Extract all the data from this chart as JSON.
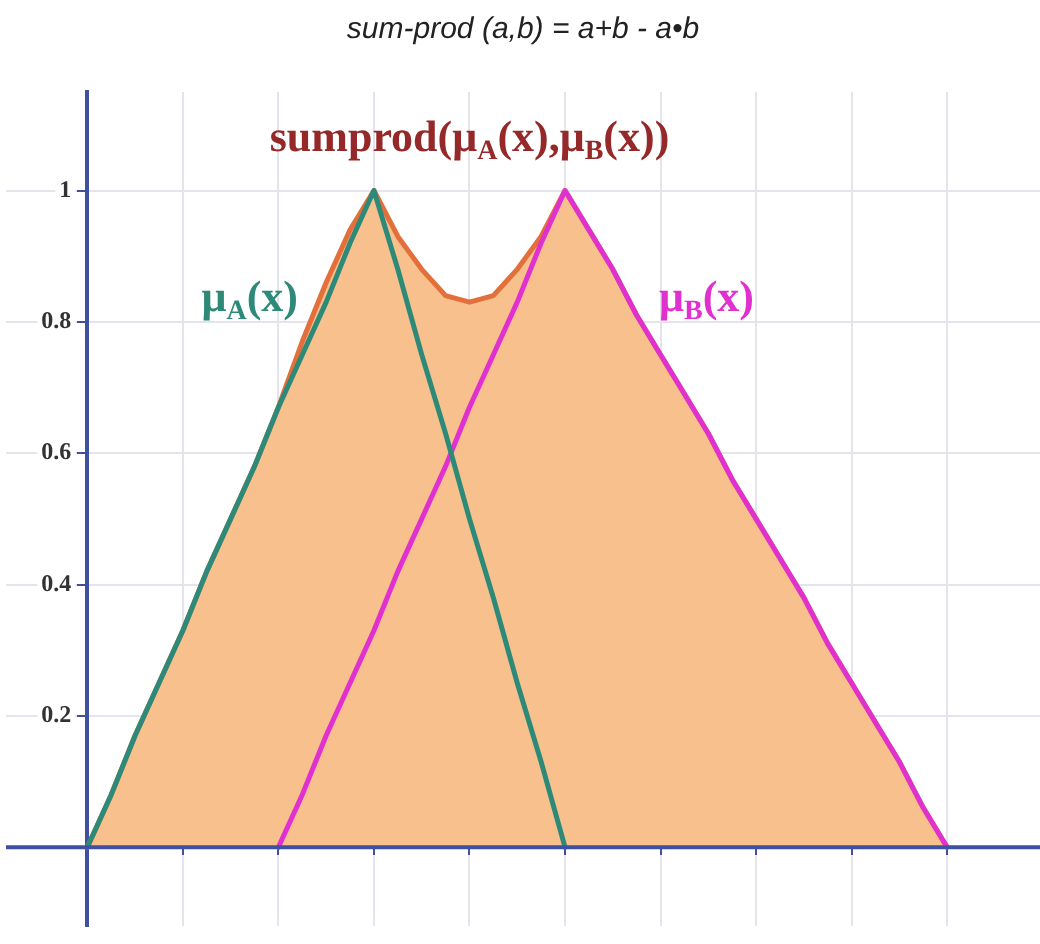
{
  "chart_data": {
    "type": "line",
    "title": "sum-prod (a,b) = a+b - a•b",
    "categories": [
      null,
      null,
      null,
      null,
      null,
      null,
      null,
      null,
      null,
      null,
      null,
      null,
      null,
      null,
      null,
      null,
      null,
      null,
      null,
      null,
      null,
      null,
      null,
      null,
      null,
      null,
      null,
      null,
      null,
      null,
      null,
      null,
      null,
      null,
      null,
      null,
      null
    ],
    "ylim": [
      -0.12,
      1.15
    ],
    "yticks": [
      {
        "value": 0,
        "label": null
      },
      0.2,
      0.4,
      0.6,
      0.8,
      1
    ],
    "tick_labels": "y",
    "grid": true,
    "marker": "none",
    "ref_lines": [
      {
        "axis": "y",
        "value": 0,
        "color": "#4050a0"
      }
    ],
    "series": [
      {
        "name": "sumprod(μ$_{A}$(x),μ$_{B}$(x))",
        "type": "area",
        "color": "#f8c08c",
        "values": [
          0,
          0.08,
          0.17,
          0.25,
          0.33,
          0.42,
          0.5,
          0.58,
          0.67,
          0.77,
          0.86,
          0.94,
          1,
          0.93,
          0.88,
          0.84,
          0.83,
          0.84,
          0.88,
          0.93,
          1,
          0.94,
          0.88,
          0.81,
          0.75,
          0.69,
          0.63,
          0.56,
          0.5,
          0.44,
          0.38,
          0.31,
          0.25,
          0.19,
          0.13,
          0.06,
          0
        ]
      },
      {
        "name": "μ$_{A}$(x)",
        "color": "#2e8a78",
        "values": [
          0,
          0.08,
          0.17,
          0.25,
          0.33,
          0.42,
          0.5,
          0.58,
          0.67,
          0.75,
          0.83,
          0.92,
          1,
          0.88,
          0.75,
          0.63,
          0.5,
          0.38,
          0.25,
          0.13,
          0,
          null,
          null,
          null,
          null,
          null,
          null,
          null,
          null,
          null,
          null,
          null,
          null,
          null,
          null,
          null,
          null
        ]
      },
      {
        "name": "μ$_{B}$(x)",
        "color": "#e030d0",
        "values": [
          null,
          null,
          null,
          null,
          null,
          null,
          null,
          null,
          0,
          0.08,
          0.17,
          0.25,
          0.33,
          0.42,
          0.5,
          0.58,
          0.67,
          0.75,
          0.83,
          0.92,
          1,
          0.94,
          0.88,
          0.81,
          0.75,
          0.69,
          0.63,
          0.56,
          0.5,
          0.44,
          0.38,
          0.31,
          0.25,
          0.19,
          0.13,
          0.06,
          0
        ]
      }
    ]
  }
}
